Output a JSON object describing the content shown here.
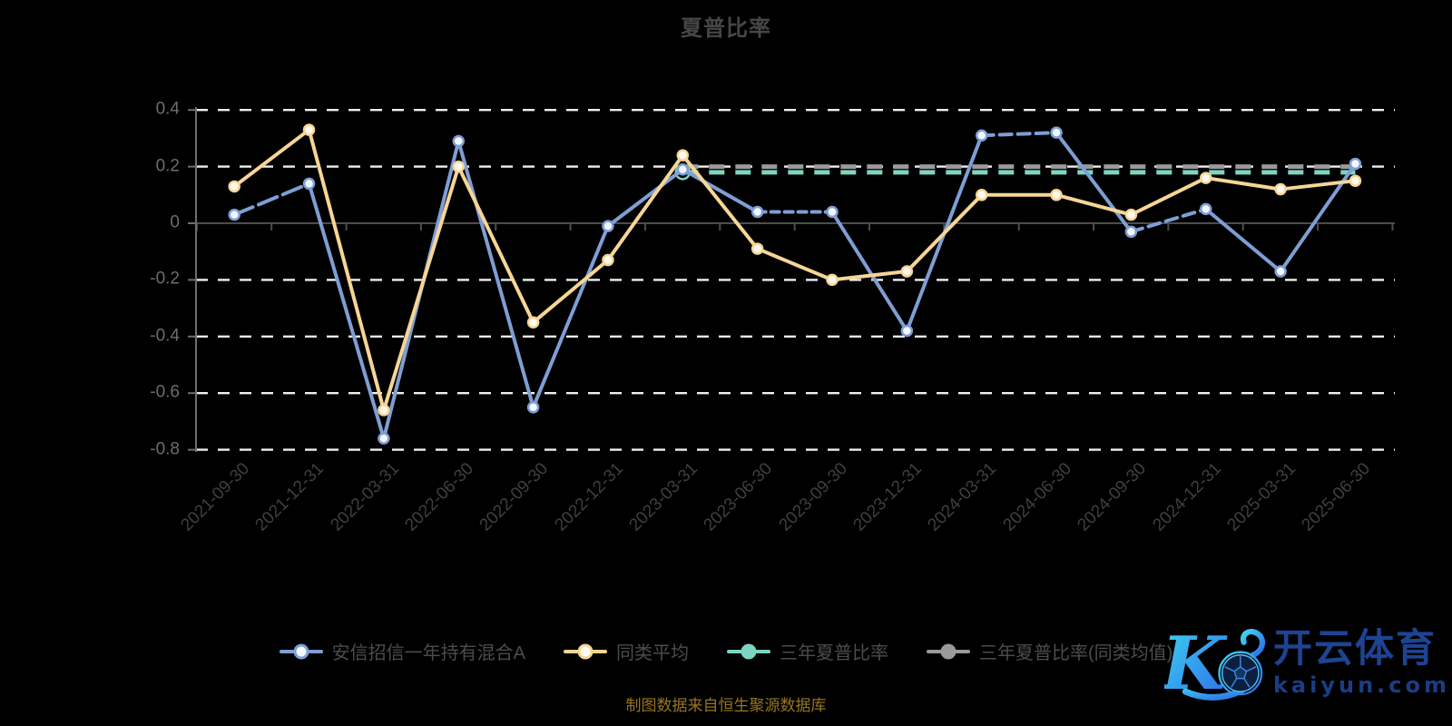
{
  "page": {
    "background": "#000000"
  },
  "title": "夏普比率",
  "caption": "制图数据来自恒生聚源数据库",
  "y_axis": {
    "labels": [
      "0.4",
      "0.2",
      "0",
      "-0.2",
      "-0.4",
      "-0.6",
      "-0.8"
    ],
    "values": [
      0.4,
      0.2,
      0,
      -0.2,
      -0.4,
      -0.6,
      -0.8
    ]
  },
  "chart_data": {
    "type": "line",
    "title": "夏普比率",
    "categories": [
      "2021-09-30",
      "2021-12-31",
      "2022-03-31",
      "2022-06-30",
      "2022-09-30",
      "2022-12-31",
      "2023-03-31",
      "2023-06-30",
      "2023-09-30",
      "2023-12-31",
      "2024-03-31",
      "2024-06-30",
      "2024-09-30",
      "2024-12-31",
      "2025-03-31",
      "2025-06-30"
    ],
    "ylim": [
      -0.8,
      0.4
    ],
    "y_tick_step": 0.2,
    "grid": "horizontal-dashed-white",
    "legend_position": "bottom",
    "series": [
      {
        "name": "安信招信一年持有混合A",
        "type": "line",
        "color": "#7e9ed4",
        "marker": "hollow-circle",
        "marker_fill": "#f3f7ff",
        "values": [
          0.03,
          0.14,
          -0.76,
          0.29,
          -0.65,
          -0.01,
          0.19,
          0.04,
          0.04,
          -0.38,
          0.31,
          0.32,
          -0.03,
          0.05,
          -0.17,
          0.21
        ],
        "dashed_segments": [
          {
            "from": 0,
            "to": 1,
            "dash": "22 7"
          },
          {
            "from": 7,
            "to": 8,
            "dash": "9 6"
          },
          {
            "from": 10,
            "to": 11,
            "dash": "13 7"
          },
          {
            "from": 12,
            "to": 13,
            "dash": "13 7"
          }
        ]
      },
      {
        "name": "同类平均",
        "type": "line",
        "color": "#f7d596",
        "marker": "hollow-circle",
        "marker_fill": "#fffaf0",
        "values": [
          0.13,
          0.33,
          -0.66,
          0.2,
          -0.35,
          -0.13,
          0.24,
          -0.09,
          -0.2,
          -0.17,
          0.1,
          0.1,
          0.03,
          0.16,
          0.12,
          0.15
        ]
      },
      {
        "name": "三年夏普比率",
        "type": "horizontal-dashed",
        "color": "#7ed4c2",
        "value": 0.18,
        "start_index": 6,
        "end_index": 15
      },
      {
        "name": "三年夏普比率(同类均值)",
        "type": "horizontal-dashed",
        "color": "#9a9a9a",
        "value": 0.2,
        "start_index": 6,
        "end_index": 15
      }
    ]
  },
  "watermark": {
    "brand": "开云体育",
    "domain": "kaiyun.com",
    "logo_letter": "K",
    "icon": "soccer-ball-icon",
    "gradient": [
      "#41d7f3",
      "#2a6ae8"
    ],
    "brand_color": "#1e4392"
  }
}
